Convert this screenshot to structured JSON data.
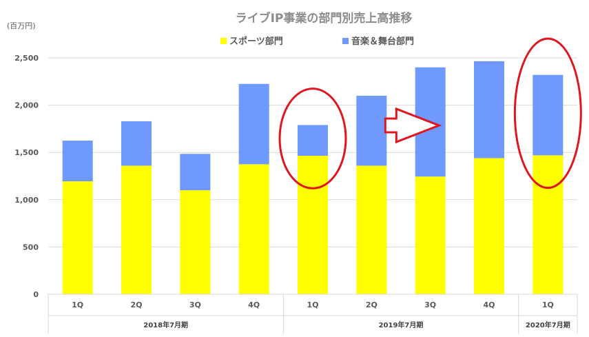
{
  "chart_data": {
    "type": "bar",
    "stacked": true,
    "title": "ライブIP事業の部門別売上高推移",
    "unit_label": "(百万円)",
    "categories": [
      "1Q",
      "2Q",
      "3Q",
      "4Q",
      "1Q",
      "2Q",
      "3Q",
      "4Q",
      "1Q"
    ],
    "groups": [
      {
        "label": "2018年7月期",
        "count": 4
      },
      {
        "label": "2019年7月期",
        "count": 4
      },
      {
        "label": "2020年7月期",
        "count": 1
      }
    ],
    "series": [
      {
        "name": "スポーツ部門",
        "color": "#ffff00",
        "values": [
          1195,
          1360,
          1100,
          1375,
          1465,
          1360,
          1245,
          1440,
          1470
        ]
      },
      {
        "name": "音楽＆舞台部門",
        "color": "#6f99ff",
        "values": [
          430,
          470,
          385,
          850,
          325,
          740,
          1155,
          1025,
          850
        ]
      }
    ],
    "ylim": [
      0,
      2500
    ],
    "yticks": [
      0,
      500,
      1000,
      1500,
      2000,
      2500
    ],
    "ytick_labels": [
      "0",
      "500",
      "1,000",
      "1,500",
      "2,000",
      "2,500"
    ],
    "grid": true,
    "legend_position": "top",
    "annotations": [
      {
        "type": "ellipse",
        "category_index": 4,
        "color": "#e0161f"
      },
      {
        "type": "ellipse",
        "category_index": 8,
        "color": "#e0161f"
      },
      {
        "type": "arrow",
        "from_index": 5.5,
        "to_index": 7,
        "color": "#e0161f"
      }
    ]
  }
}
